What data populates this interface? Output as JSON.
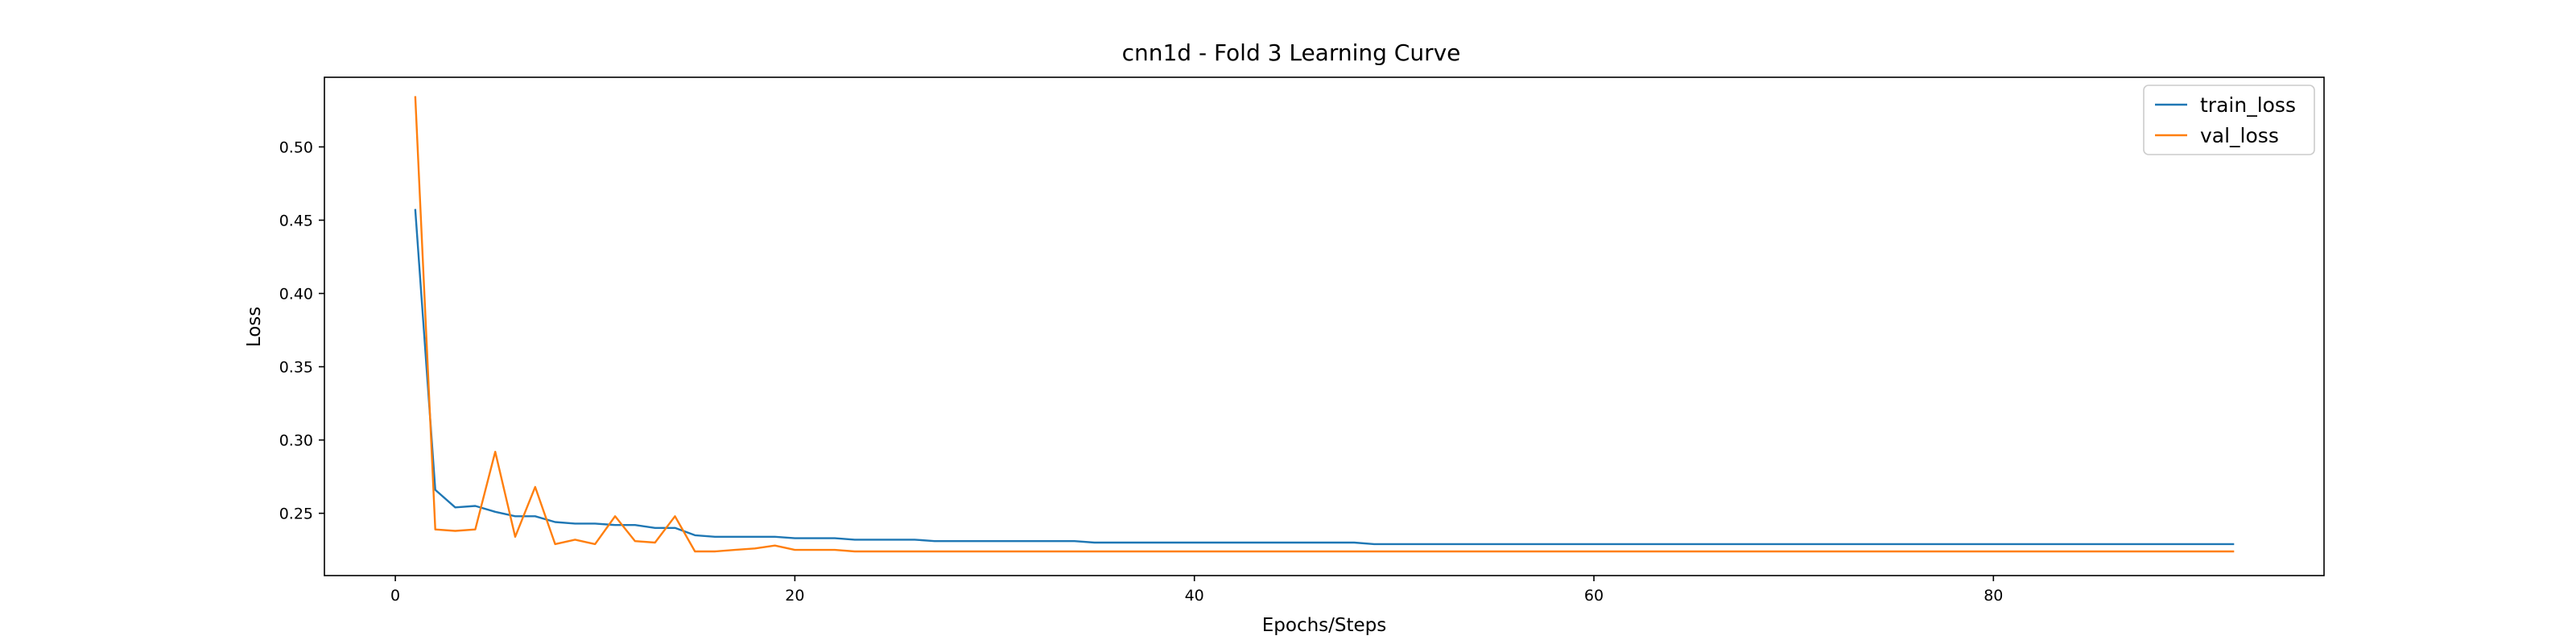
{
  "chart_data": {
    "type": "line",
    "title": "cnn1d - Fold 3 Learning Curve",
    "xlabel": "Epochs/Steps",
    "ylabel": "Loss",
    "xlim": [
      -3.55,
      96.55
    ],
    "ylim": [
      0.2075,
      0.5475
    ],
    "xticks": [
      0,
      20,
      40,
      60,
      80
    ],
    "xtick_labels": [
      "0",
      "20",
      "40",
      "60",
      "80"
    ],
    "yticks": [
      0.25,
      0.3,
      0.35,
      0.4,
      0.45,
      0.5
    ],
    "ytick_labels": [
      "0.25",
      "0.30",
      "0.35",
      "0.40",
      "0.45",
      "0.50"
    ],
    "grid": false,
    "legend_position": "top-right",
    "series": [
      {
        "name": "train_loss",
        "color": "#1f77b4",
        "x": [
          1,
          2,
          3,
          4,
          5,
          6,
          7,
          8,
          9,
          10,
          11,
          12,
          13,
          14,
          15,
          16,
          17,
          18,
          19,
          20,
          21,
          22,
          23,
          24,
          25,
          26,
          27,
          28,
          29,
          30,
          31,
          32,
          33,
          34,
          35,
          36,
          37,
          38,
          39,
          40,
          41,
          42,
          43,
          44,
          45,
          46,
          47,
          48,
          49,
          50,
          51,
          52,
          53,
          54,
          55,
          56,
          57,
          58,
          59,
          60,
          61,
          62,
          63,
          64,
          65,
          66,
          67,
          68,
          69,
          70,
          71,
          72,
          73,
          74,
          75,
          76,
          77,
          78,
          79,
          80,
          81,
          82,
          83,
          84,
          85,
          86,
          87,
          88,
          89,
          90,
          91,
          92
        ],
        "values": [
          0.457,
          0.266,
          0.254,
          0.255,
          0.251,
          0.248,
          0.248,
          0.244,
          0.243,
          0.243,
          0.242,
          0.242,
          0.24,
          0.24,
          0.235,
          0.234,
          0.234,
          0.234,
          0.234,
          0.233,
          0.233,
          0.233,
          0.232,
          0.232,
          0.232,
          0.232,
          0.231,
          0.231,
          0.231,
          0.231,
          0.231,
          0.231,
          0.231,
          0.231,
          0.23,
          0.23,
          0.23,
          0.23,
          0.23,
          0.23,
          0.23,
          0.23,
          0.23,
          0.23,
          0.23,
          0.23,
          0.23,
          0.23,
          0.229,
          0.229,
          0.229,
          0.229,
          0.229,
          0.229,
          0.229,
          0.229,
          0.229,
          0.229,
          0.229,
          0.229,
          0.229,
          0.229,
          0.229,
          0.229,
          0.229,
          0.229,
          0.229,
          0.229,
          0.229,
          0.229,
          0.229,
          0.229,
          0.229,
          0.229,
          0.229,
          0.229,
          0.229,
          0.229,
          0.229,
          0.229,
          0.229,
          0.229,
          0.229,
          0.229,
          0.229,
          0.229,
          0.229,
          0.229,
          0.229,
          0.229,
          0.229,
          0.229
        ]
      },
      {
        "name": "val_loss",
        "color": "#ff7f0e",
        "x": [
          1,
          2,
          3,
          4,
          5,
          6,
          7,
          8,
          9,
          10,
          11,
          12,
          13,
          14,
          15,
          16,
          17,
          18,
          19,
          20,
          21,
          22,
          23,
          24,
          25,
          26,
          27,
          28,
          29,
          30,
          31,
          32,
          33,
          34,
          35,
          36,
          37,
          38,
          39,
          40,
          41,
          42,
          43,
          44,
          45,
          46,
          47,
          48,
          49,
          50,
          51,
          52,
          53,
          54,
          55,
          56,
          57,
          58,
          59,
          60,
          61,
          62,
          63,
          64,
          65,
          66,
          67,
          68,
          69,
          70,
          71,
          72,
          73,
          74,
          75,
          76,
          77,
          78,
          79,
          80,
          81,
          82,
          83,
          84,
          85,
          86,
          87,
          88,
          89,
          90,
          91,
          92
        ],
        "values": [
          0.534,
          0.239,
          0.238,
          0.239,
          0.292,
          0.234,
          0.268,
          0.229,
          0.232,
          0.229,
          0.248,
          0.231,
          0.23,
          0.248,
          0.224,
          0.224,
          0.225,
          0.226,
          0.228,
          0.225,
          0.225,
          0.225,
          0.224,
          0.224,
          0.224,
          0.224,
          0.224,
          0.224,
          0.224,
          0.224,
          0.224,
          0.224,
          0.224,
          0.224,
          0.224,
          0.224,
          0.224,
          0.224,
          0.224,
          0.224,
          0.224,
          0.224,
          0.224,
          0.224,
          0.224,
          0.224,
          0.224,
          0.224,
          0.224,
          0.224,
          0.224,
          0.224,
          0.224,
          0.224,
          0.224,
          0.224,
          0.224,
          0.224,
          0.224,
          0.224,
          0.224,
          0.224,
          0.224,
          0.224,
          0.224,
          0.224,
          0.224,
          0.224,
          0.224,
          0.224,
          0.224,
          0.224,
          0.224,
          0.224,
          0.224,
          0.224,
          0.224,
          0.224,
          0.224,
          0.224,
          0.224,
          0.224,
          0.224,
          0.224,
          0.224,
          0.224,
          0.224,
          0.224,
          0.224,
          0.224,
          0.224,
          0.224
        ]
      }
    ]
  }
}
